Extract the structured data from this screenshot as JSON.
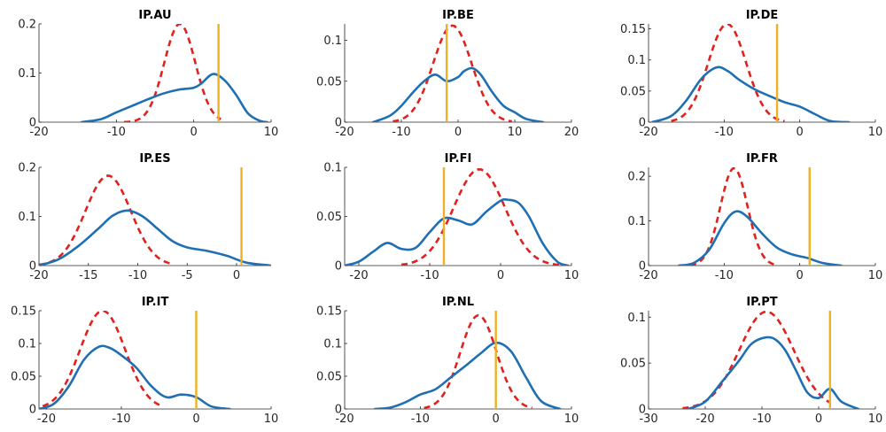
{
  "chart_data": [
    {
      "type": "line",
      "title": "IP.AU",
      "xlim": [
        -20,
        10
      ],
      "ylim": [
        0,
        0.2
      ],
      "xticks": [
        -20,
        -10,
        0,
        10
      ],
      "yticks": [
        0,
        0.1,
        0.2
      ],
      "xticklabels": [
        "-20",
        "-10",
        "0",
        "10"
      ],
      "yticklabels": [
        "0",
        "0.1",
        "0.2"
      ],
      "vline": 3.2,
      "normal": {
        "mu": -1.8,
        "sigma": 2.0,
        "peak": 0.2,
        "range": [
          -9,
          3.5
        ]
      },
      "kde": {
        "x": [
          -14.5,
          -12,
          -10,
          -8,
          -6,
          -4,
          -2,
          0,
          1,
          2.5,
          4,
          5.5,
          7,
          8.5,
          9.5
        ],
        "y": [
          0,
          0.006,
          0.02,
          0.033,
          0.046,
          0.058,
          0.066,
          0.07,
          0.079,
          0.098,
          0.085,
          0.055,
          0.018,
          0.003,
          0
        ]
      }
    },
    {
      "type": "line",
      "title": "IP.BE",
      "xlim": [
        -20,
        20
      ],
      "ylim": [
        0,
        0.12
      ],
      "xticks": [
        -20,
        -10,
        0,
        10,
        20
      ],
      "yticks": [
        0,
        0.05,
        0.1
      ],
      "xticklabels": [
        "-20",
        "-10",
        "0",
        "10",
        "20"
      ],
      "yticklabels": [
        "0",
        "0.05",
        "0.1"
      ],
      "vline": -2,
      "normal": {
        "mu": -1,
        "sigma": 3.4,
        "peak": 0.118,
        "range": [
          -11.5,
          9.5
        ]
      },
      "kde": {
        "x": [
          -15,
          -12,
          -10,
          -8,
          -6,
          -4,
          -2,
          0,
          1,
          2.5,
          4,
          6,
          8,
          10,
          12,
          15
        ],
        "y": [
          0,
          0.008,
          0.02,
          0.036,
          0.05,
          0.058,
          0.05,
          0.055,
          0.062,
          0.066,
          0.058,
          0.037,
          0.02,
          0.012,
          0.004,
          0
        ]
      }
    },
    {
      "type": "line",
      "title": "IP.DE",
      "xlim": [
        -20,
        10
      ],
      "ylim": [
        0,
        0.158
      ],
      "xticks": [
        -20,
        -10,
        0,
        10
      ],
      "yticks": [
        0,
        0.05,
        0.1,
        0.15
      ],
      "xticklabels": [
        "-20",
        "-10",
        "0",
        "10"
      ],
      "yticklabels": [
        "0",
        "0.05",
        "0.1",
        "0.15"
      ],
      "vline": -3,
      "normal": {
        "mu": -9.6,
        "sigma": 2.5,
        "peak": 0.158,
        "range": [
          -17,
          -2
        ]
      },
      "kde": {
        "x": [
          -19.5,
          -17,
          -15,
          -13,
          -11,
          -9.5,
          -8,
          -6,
          -4,
          -2,
          0,
          2,
          4,
          6.5
        ],
        "y": [
          0,
          0.01,
          0.035,
          0.07,
          0.088,
          0.082,
          0.068,
          0.053,
          0.042,
          0.032,
          0.025,
          0.013,
          0.002,
          0
        ]
      }
    },
    {
      "type": "line",
      "title": "IP.ES",
      "xlim": [
        -20,
        3.5
      ],
      "ylim": [
        0,
        0.2
      ],
      "xticks": [
        -20,
        -15,
        -10,
        -5,
        0
      ],
      "yticks": [
        0,
        0.1,
        0.2
      ],
      "xticklabels": [
        "-20",
        "-15",
        "-10",
        "-5",
        "0"
      ],
      "yticklabels": [
        "0",
        "0.1",
        "0.2"
      ],
      "vline": 0.5,
      "normal": {
        "mu": -13,
        "sigma": 2.3,
        "peak": 0.183,
        "range": [
          -20,
          -6.5
        ]
      },
      "kde": {
        "x": [
          -20,
          -18,
          -16,
          -14,
          -12.5,
          -11,
          -9.5,
          -8,
          -6.5,
          -5,
          -3,
          -1,
          1,
          3.5
        ],
        "y": [
          0,
          0.013,
          0.04,
          0.075,
          0.102,
          0.112,
          0.1,
          0.075,
          0.05,
          0.037,
          0.03,
          0.02,
          0.006,
          0
        ]
      }
    },
    {
      "type": "line",
      "title": "IP.FI",
      "xlim": [
        -22,
        10
      ],
      "ylim": [
        0,
        0.1
      ],
      "xticks": [
        -20,
        -10,
        0,
        10
      ],
      "yticks": [
        0,
        0.05,
        0.1
      ],
      "xticklabels": [
        "-20",
        "-10",
        "0",
        "10"
      ],
      "yticklabels": [
        "0",
        "0.05",
        "0.1"
      ],
      "vline": -8,
      "normal": {
        "mu": -3,
        "sigma": 3.6,
        "peak": 0.098,
        "range": [
          -14,
          8.5
        ]
      },
      "kde": {
        "x": [
          -22,
          -20,
          -18,
          -16,
          -14,
          -12,
          -10,
          -8,
          -6,
          -4,
          -2,
          0,
          1,
          2.5,
          4,
          6,
          8,
          9.5
        ],
        "y": [
          0,
          0.004,
          0.014,
          0.023,
          0.017,
          0.018,
          0.034,
          0.048,
          0.046,
          0.042,
          0.055,
          0.066,
          0.067,
          0.064,
          0.05,
          0.022,
          0.004,
          0
        ]
      }
    },
    {
      "type": "line",
      "title": "IP.FR",
      "xlim": [
        -20,
        10
      ],
      "ylim": [
        0,
        0.22
      ],
      "xticks": [
        -20,
        -10,
        0,
        10
      ],
      "yticks": [
        0,
        0.1,
        0.2
      ],
      "xticklabels": [
        "-20",
        "-10",
        "0",
        "10"
      ],
      "yticklabels": [
        "0",
        "0.1",
        "0.2"
      ],
      "vline": 1.3,
      "normal": {
        "mu": -8.7,
        "sigma": 1.8,
        "peak": 0.218,
        "range": [
          -14.5,
          -3
        ]
      },
      "kde": {
        "x": [
          -16,
          -14,
          -12,
          -10,
          -8.5,
          -7,
          -5,
          -3,
          -1,
          1,
          3,
          5.5
        ],
        "y": [
          0,
          0.006,
          0.035,
          0.095,
          0.121,
          0.11,
          0.072,
          0.04,
          0.025,
          0.017,
          0.006,
          0
        ]
      }
    },
    {
      "type": "line",
      "title": "IP.IT",
      "xlim": [
        -21,
        10
      ],
      "ylim": [
        0,
        0.15
      ],
      "xticks": [
        -20,
        -10,
        0,
        10
      ],
      "yticks": [
        0,
        0.05,
        0.1,
        0.15
      ],
      "xticklabels": [
        "-20",
        "-10",
        "0",
        "10"
      ],
      "yticklabels": [
        "0",
        "0.05",
        "0.1",
        "0.15"
      ],
      "vline": 0,
      "normal": {
        "mu": -12.5,
        "sigma": 3.0,
        "peak": 0.15,
        "range": [
          -20.5,
          -4.5
        ]
      },
      "kde": {
        "x": [
          -21,
          -19,
          -17,
          -15,
          -13,
          -11.5,
          -10,
          -8,
          -6,
          -4,
          -2,
          0,
          2,
          4.5
        ],
        "y": [
          0,
          0.008,
          0.035,
          0.075,
          0.095,
          0.093,
          0.082,
          0.063,
          0.035,
          0.018,
          0.022,
          0.018,
          0.004,
          0
        ]
      }
    },
    {
      "type": "line",
      "title": "IP.NL",
      "xlim": [
        -20,
        10
      ],
      "ylim": [
        0,
        0.15
      ],
      "xticks": [
        -20,
        -10,
        0,
        10
      ],
      "yticks": [
        0,
        0.05,
        0.1,
        0.15
      ],
      "xticklabels": [
        "-20",
        "-10",
        "0",
        "10"
      ],
      "yticklabels": [
        "0",
        "0.05",
        "0.1",
        "0.15"
      ],
      "vline": 0,
      "normal": {
        "mu": -2.3,
        "sigma": 2.4,
        "peak": 0.143,
        "range": [
          -9.5,
          4.8
        ]
      },
      "kde": {
        "x": [
          -16,
          -14,
          -12,
          -10,
          -8,
          -6,
          -4,
          -2,
          0,
          2,
          4,
          6,
          8.5
        ],
        "y": [
          0,
          0.002,
          0.01,
          0.022,
          0.03,
          0.048,
          0.066,
          0.085,
          0.101,
          0.088,
          0.048,
          0.012,
          0
        ]
      }
    },
    {
      "type": "line",
      "title": "IP.PT",
      "xlim": [
        -30,
        10
      ],
      "ylim": [
        0,
        0.107
      ],
      "xticks": [
        -30,
        -20,
        -10,
        0,
        10
      ],
      "yticks": [
        0,
        0.05,
        0.1
      ],
      "xticklabels": [
        "-30",
        "-20",
        "-10",
        "0",
        "10"
      ],
      "yticklabels": [
        "0",
        "0.05",
        "0.1"
      ],
      "vline": 2,
      "normal": {
        "mu": -9.2,
        "sigma": 4.8,
        "peak": 0.106,
        "range": [
          -24,
          2
        ]
      },
      "kde": {
        "x": [
          -23,
          -20,
          -17,
          -14,
          -12,
          -10,
          -8,
          -6,
          -4,
          -2,
          0,
          2,
          4,
          7
        ],
        "y": [
          0,
          0.008,
          0.03,
          0.053,
          0.07,
          0.077,
          0.077,
          0.065,
          0.042,
          0.018,
          0.012,
          0.022,
          0.008,
          0
        ]
      }
    }
  ],
  "colors": {
    "kde": "#1f6fb4",
    "normal": "#e0221e",
    "vline": "#eeb125"
  }
}
